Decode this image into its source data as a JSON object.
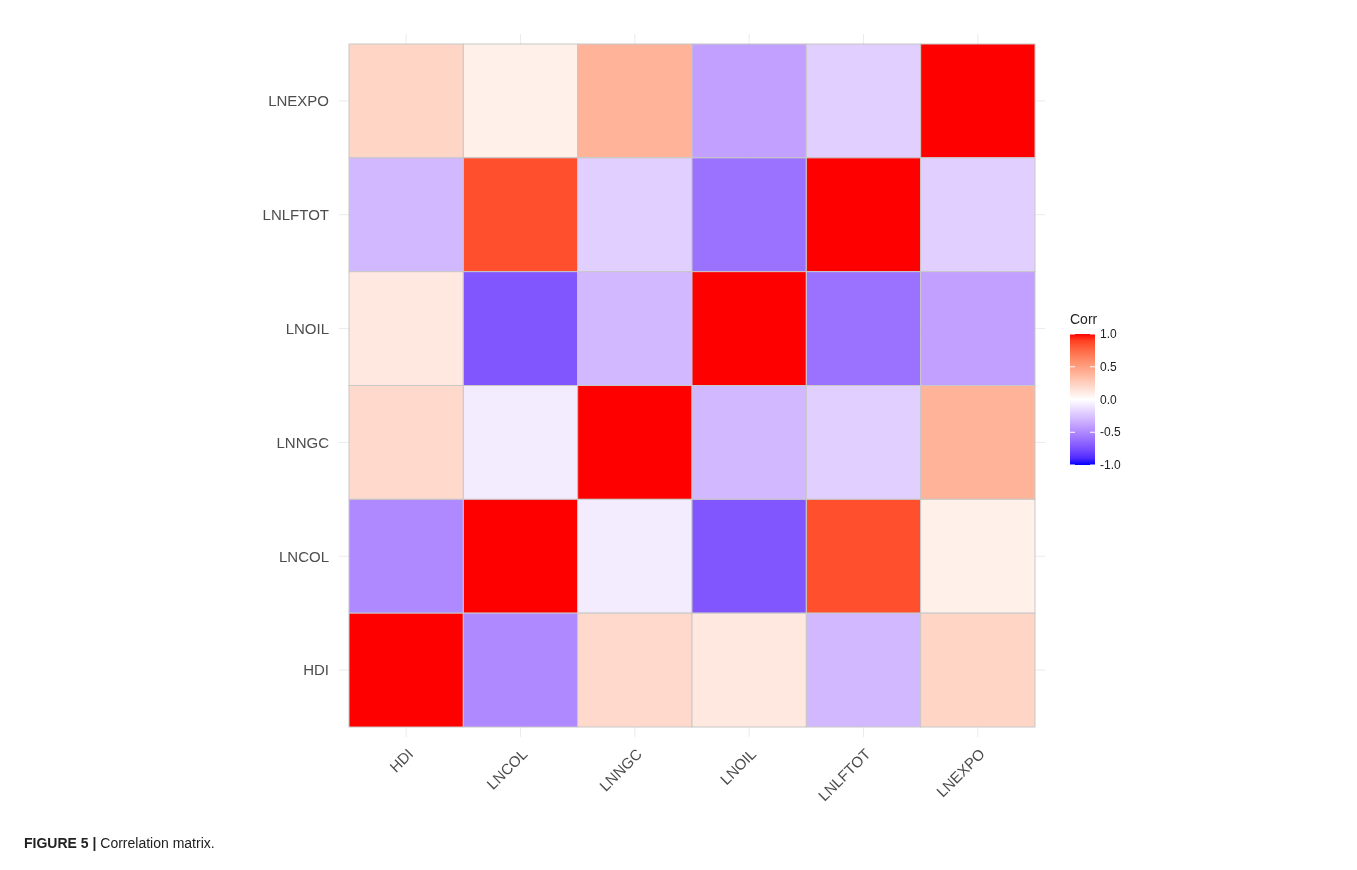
{
  "chart_data": {
    "type": "heatmap",
    "categories": [
      "HDI",
      "LNCOL",
      "LNNGC",
      "LNOIL",
      "LNLFTOT",
      "LNEXPO"
    ],
    "y_categories": [
      "LNEXPO",
      "LNLFTOT",
      "LNOIL",
      "LNNGC",
      "LNCOL",
      "HDI"
    ],
    "cells": [
      [
        0.22,
        0.08,
        0.4,
        -0.4,
        -0.2,
        1
      ],
      [
        -0.3,
        0.85,
        -0.2,
        -0.6,
        1,
        -0.2
      ],
      [
        0.12,
        -0.72,
        -0.3,
        1,
        -0.6,
        -0.4
      ],
      [
        0.2,
        -0.08,
        1,
        -0.3,
        -0.2,
        0.4
      ],
      [
        -0.5,
        1,
        -0.08,
        -0.72,
        0.85,
        0.08
      ],
      [
        1,
        -0.5,
        0.2,
        0.12,
        -0.3,
        0.22
      ]
    ],
    "clabel": "Corr",
    "clim": [
      -1,
      1
    ],
    "cticks": [
      {
        "value": -1,
        "label": "-1.0"
      },
      {
        "value": -0.5,
        "label": "-0.5"
      },
      {
        "value": 0,
        "label": "0.0"
      },
      {
        "value": 0.5,
        "label": "0.5"
      },
      {
        "value": 1,
        "label": "1.0"
      }
    ],
    "grid": true,
    "annotations": [
      "FIGURE 5 | Correlation matrix."
    ]
  }
}
